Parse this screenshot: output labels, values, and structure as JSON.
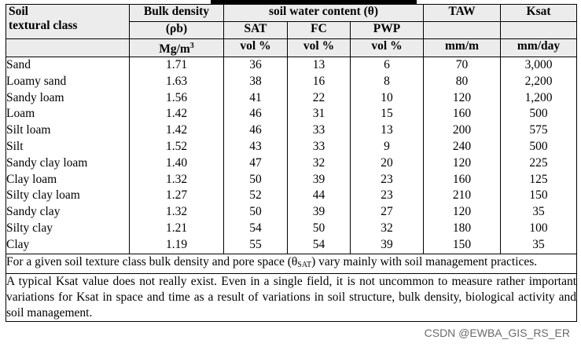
{
  "header": {
    "col1": "Soil",
    "col1_line2": "textural class",
    "bulk": "Bulk density",
    "bulk_symbol": "(ρb)",
    "bulk_unit": "Mg/m",
    "bulk_unit_sup": "3",
    "swc": "soil water content (θ)",
    "sat": "SAT",
    "fc": "FC",
    "pwp": "PWP",
    "vol": "vol %",
    "taw": "TAW",
    "taw_unit": "mm/m",
    "ksat": "Ksat",
    "ksat_unit": "mm/day"
  },
  "rows": [
    {
      "name": "Sand",
      "bulk": "1.71",
      "sat": "36",
      "fc": "13",
      "pwp": "6",
      "taw": "70",
      "ksat": "3,000"
    },
    {
      "name": "Loamy sand",
      "bulk": "1.63",
      "sat": "38",
      "fc": "16",
      "pwp": "8",
      "taw": "80",
      "ksat": "2,200"
    },
    {
      "name": "Sandy loam",
      "bulk": "1.56",
      "sat": "41",
      "fc": "22",
      "pwp": "10",
      "taw": "120",
      "ksat": "1,200"
    },
    {
      "name": "Loam",
      "bulk": "1.42",
      "sat": "46",
      "fc": "31",
      "pwp": "15",
      "taw": "160",
      "ksat": "500"
    },
    {
      "name": "Silt loam",
      "bulk": "1.42",
      "sat": "46",
      "fc": "33",
      "pwp": "13",
      "taw": "200",
      "ksat": "575"
    },
    {
      "name": "Silt",
      "bulk": "1.52",
      "sat": "43",
      "fc": "33",
      "pwp": "9",
      "taw": "240",
      "ksat": "500"
    },
    {
      "name": "Sandy clay loam",
      "bulk": "1.40",
      "sat": "47",
      "fc": "32",
      "pwp": "20",
      "taw": "120",
      "ksat": "225"
    },
    {
      "name": "Clay loam",
      "bulk": "1.32",
      "sat": "50",
      "fc": "39",
      "pwp": "23",
      "taw": "160",
      "ksat": "125"
    },
    {
      "name": "Silty clay loam",
      "bulk": "1.27",
      "sat": "52",
      "fc": "44",
      "pwp": "23",
      "taw": "210",
      "ksat": "150"
    },
    {
      "name": "Sandy clay",
      "bulk": "1.32",
      "sat": "50",
      "fc": "39",
      "pwp": "27",
      "taw": "120",
      "ksat": "35"
    },
    {
      "name": "Silty clay",
      "bulk": "1.21",
      "sat": "54",
      "fc": "50",
      "pwp": "32",
      "taw": "180",
      "ksat": "100"
    },
    {
      "name": "Clay",
      "bulk": "1.19",
      "sat": "55",
      "fc": "54",
      "pwp": "39",
      "taw": "150",
      "ksat": "35"
    }
  ],
  "notes": {
    "note1_a": "For a given soil texture class bulk density and pore space (θ",
    "note1_sub": "SAT",
    "note1_b": ") vary mainly with soil management practices.",
    "note2": "A typical Ksat value does not really exist. Even in a single field, it is not uncommon to measure rather important variations for Ksat in space and time as a result of variations in soil structure, bulk density, biological activity and soil management."
  },
  "watermark": "CSDN @EWBA_GIS_RS_ER"
}
